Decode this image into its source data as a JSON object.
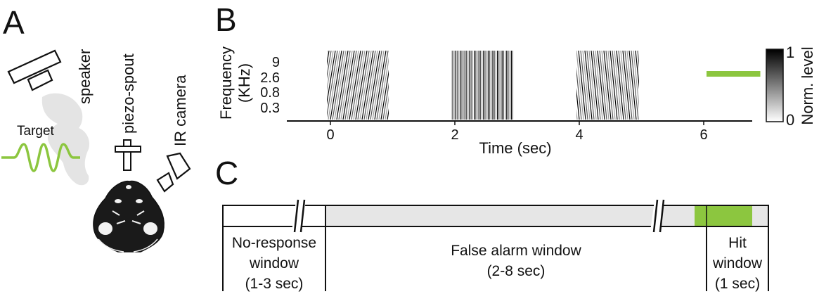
{
  "panelA": {
    "letter": "A",
    "speaker_label": "speaker",
    "spout_label": "piezo-spout",
    "camera_label": "IR camera",
    "target_label": "Target",
    "target_color": "#8cc63f"
  },
  "panelB": {
    "letter": "B",
    "ylabel_line1": "Frequency",
    "ylabel_line2": "(KHz)",
    "yticks": [
      "9",
      "2.6",
      "0.8",
      "0.3"
    ],
    "xlabel": "Time (sec)",
    "xticks": [
      "0",
      "2",
      "4",
      "6"
    ],
    "colorbar": {
      "label": "Norm. level",
      "max_label": "1",
      "min_label": "0"
    },
    "target_color": "#8cc63f"
  },
  "chart_data": {
    "type": "heatmap",
    "xlabel": "Time (sec)",
    "ylabel": "Frequency (KHz)",
    "xlim": [
      -0.5,
      7.2
    ],
    "x_ticks": [
      0,
      2,
      4,
      6
    ],
    "y_ticks": [
      "0.3",
      "0.8",
      "2.6",
      "9"
    ],
    "clim": [
      0,
      1
    ],
    "colorbar_label": "Norm. level",
    "sound_blocks": [
      {
        "start": 0,
        "end": 1,
        "pattern": "upward sweeps"
      },
      {
        "start": 2,
        "end": 3,
        "pattern": "broadband clicks"
      },
      {
        "start": 4,
        "end": 5,
        "pattern": "downward sweeps"
      }
    ],
    "target": {
      "start": 6,
      "end": 7,
      "frequency_band": "2.6 KHz"
    }
  },
  "panelC": {
    "letter": "C",
    "windows": [
      {
        "label_lines": [
          "No-response",
          "window",
          "(1-3 sec)"
        ]
      },
      {
        "label_lines": [
          "False alarm window",
          "(2-8 sec)"
        ]
      },
      {
        "label_lines": [
          "Hit",
          "window",
          "(1 sec)"
        ]
      }
    ],
    "hit_color": "#8cc63f",
    "gray_color": "#e6e6e6"
  }
}
